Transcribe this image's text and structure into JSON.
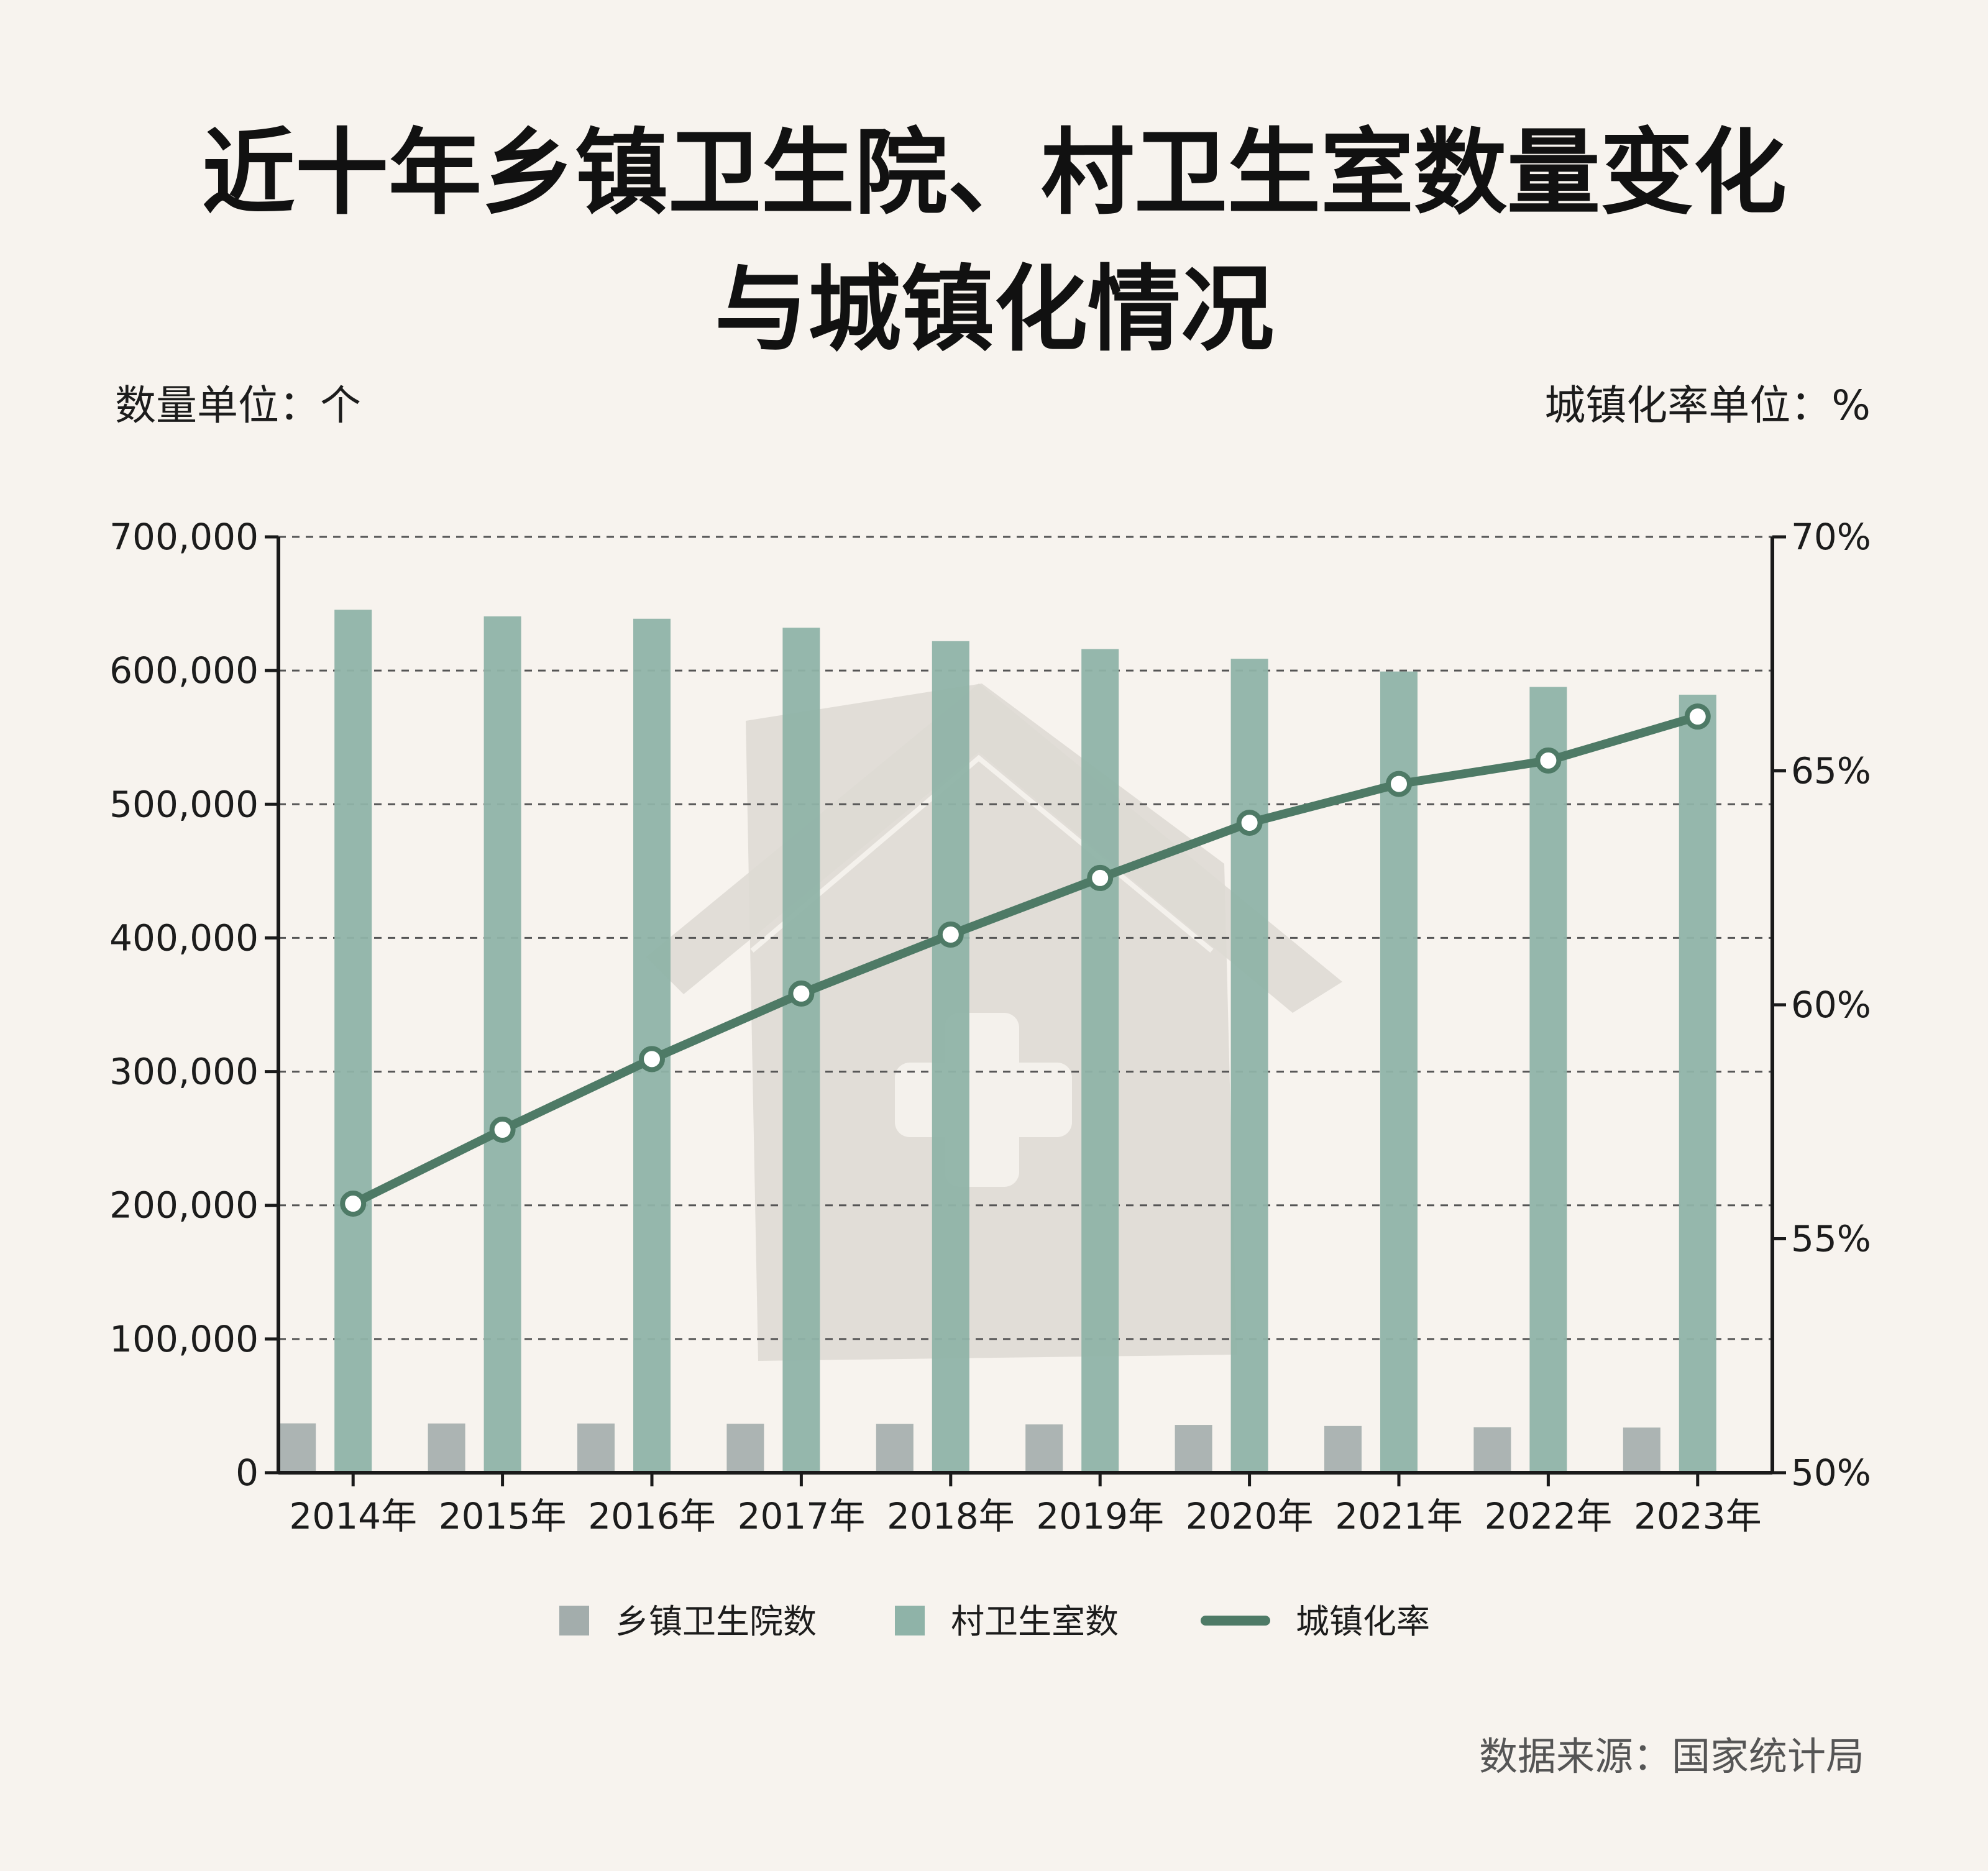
{
  "title_line1": "近十年乡镇卫生院、村卫生室数量变化",
  "title_line2": "与城镇化情况",
  "left_unit": "数量单位：个",
  "right_unit": "城镇化率单位：%",
  "source": "数据来源：国家统计局",
  "colors": {
    "township": "#a3adac",
    "village": "#8fb3a8",
    "line": "#4e7a66",
    "background": "#f7f3ee",
    "watermark": "#dedad4"
  },
  "chart_data": {
    "type": "bar",
    "categories": [
      "2014年",
      "2015年",
      "2016年",
      "2017年",
      "2018年",
      "2019年",
      "2020年",
      "2021年",
      "2022年",
      "2023年"
    ],
    "series": [
      {
        "name": "乡镇卫生院数",
        "type": "bar",
        "axis": "left",
        "values": [
          36902,
          36817,
          36795,
          36551,
          36461,
          36112,
          35762,
          34943,
          33917,
          33753
        ]
      },
      {
        "name": "村卫生室数",
        "type": "bar",
        "axis": "left",
        "values": [
          645470,
          640536,
          638763,
          632057,
          622001,
          616094,
          608828,
          599292,
          587749,
          581964
        ]
      },
      {
        "name": "城镇化率",
        "type": "line",
        "axis": "right",
        "values": [
          55.75,
          57.33,
          58.84,
          60.24,
          61.5,
          62.71,
          63.89,
          64.72,
          65.22,
          66.16
        ]
      }
    ],
    "y_left": {
      "min": 0,
      "max": 700000,
      "ticks": [
        "0",
        "100,000",
        "200,000",
        "300,000",
        "400,000",
        "500,000",
        "600,000",
        "700,000"
      ]
    },
    "y_right": {
      "min": 50,
      "max": 70,
      "ticks": [
        "50%",
        "55%",
        "60%",
        "65%",
        "70%"
      ]
    },
    "grid": "dashed horizontal",
    "legend_position": "bottom"
  }
}
